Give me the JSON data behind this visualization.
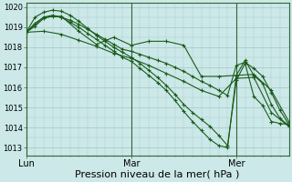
{
  "background_color": "#cce8e8",
  "plot_bg_color": "#cce8e8",
  "grid_color": "#aacccc",
  "vline_color": "#336633",
  "line_color": "#1a5c1a",
  "xlabel": "Pression niveau de la mer( hPa )",
  "xlabel_fontsize": 8,
  "yticks": [
    1013,
    1014,
    1015,
    1016,
    1017,
    1018,
    1019,
    1020
  ],
  "ytick_fontsize": 6,
  "xtick_fontsize": 7,
  "ylim": [
    1012.6,
    1020.2
  ],
  "xlim": [
    0,
    60
  ],
  "xtick_labels": [
    "Lun",
    "Mar",
    "Mer"
  ],
  "xtick_positions": [
    0,
    24,
    48
  ],
  "vlines": [
    0,
    24,
    48
  ],
  "series": [
    [
      0,
      1018.75,
      2,
      1019.05,
      4,
      1019.45,
      6,
      1019.55,
      8,
      1019.5,
      10,
      1019.35,
      12,
      1019.15,
      14,
      1018.9,
      16,
      1018.65,
      18,
      1018.4,
      20,
      1018.15,
      22,
      1017.9,
      24,
      1017.8,
      26,
      1017.65,
      28,
      1017.5,
      30,
      1017.35,
      32,
      1017.2,
      34,
      1017.0,
      36,
      1016.8,
      38,
      1016.55,
      40,
      1016.3,
      42,
      1016.1,
      44,
      1015.85,
      46,
      1015.6,
      48,
      1017.1,
      50,
      1017.25,
      52,
      1016.95,
      54,
      1016.55,
      56,
      1015.75,
      58,
      1014.85,
      60,
      1014.15
    ],
    [
      0,
      1018.75,
      2,
      1019.5,
      4,
      1019.75,
      6,
      1019.85,
      8,
      1019.8,
      10,
      1019.6,
      12,
      1019.3,
      14,
      1018.95,
      16,
      1018.6,
      18,
      1018.3,
      20,
      1018.0,
      22,
      1017.75,
      24,
      1017.5,
      26,
      1017.2,
      28,
      1016.85,
      30,
      1016.5,
      32,
      1016.1,
      34,
      1015.65,
      36,
      1015.15,
      38,
      1014.75,
      40,
      1014.4,
      42,
      1014.05,
      44,
      1013.6,
      46,
      1013.1,
      48,
      1016.35,
      50,
      1017.2,
      52,
      1015.55,
      54,
      1015.1,
      56,
      1014.3,
      58,
      1014.2,
      60,
      1014.15
    ],
    [
      0,
      1018.75,
      2,
      1019.2,
      4,
      1019.5,
      6,
      1019.6,
      8,
      1019.5,
      10,
      1019.25,
      12,
      1019.0,
      14,
      1018.7,
      16,
      1018.4,
      18,
      1018.1,
      20,
      1017.8,
      22,
      1017.5,
      24,
      1017.3,
      26,
      1016.95,
      28,
      1016.6,
      30,
      1016.25,
      32,
      1015.85,
      34,
      1015.35,
      36,
      1014.8,
      38,
      1014.3,
      40,
      1013.85,
      42,
      1013.4,
      44,
      1013.1,
      46,
      1013.0,
      48,
      1016.6,
      50,
      1017.35,
      52,
      1016.6,
      54,
      1016.2,
      56,
      1015.15,
      58,
      1014.45,
      60,
      1014.1
    ],
    [
      0,
      1018.75,
      4,
      1019.5,
      8,
      1019.55,
      12,
      1018.8,
      16,
      1018.15,
      20,
      1018.5,
      24,
      1018.1,
      28,
      1018.3,
      32,
      1018.3,
      36,
      1018.1,
      40,
      1016.55,
      44,
      1016.55,
      48,
      1016.6,
      52,
      1016.65,
      56,
      1015.85,
      60,
      1014.3
    ],
    [
      0,
      1018.75,
      4,
      1018.8,
      8,
      1018.65,
      12,
      1018.35,
      16,
      1018.05,
      20,
      1017.7,
      24,
      1017.45,
      28,
      1017.1,
      32,
      1016.7,
      36,
      1016.3,
      40,
      1015.85,
      44,
      1015.55,
      48,
      1016.45,
      52,
      1016.5,
      56,
      1014.75,
      60,
      1014.05
    ]
  ]
}
